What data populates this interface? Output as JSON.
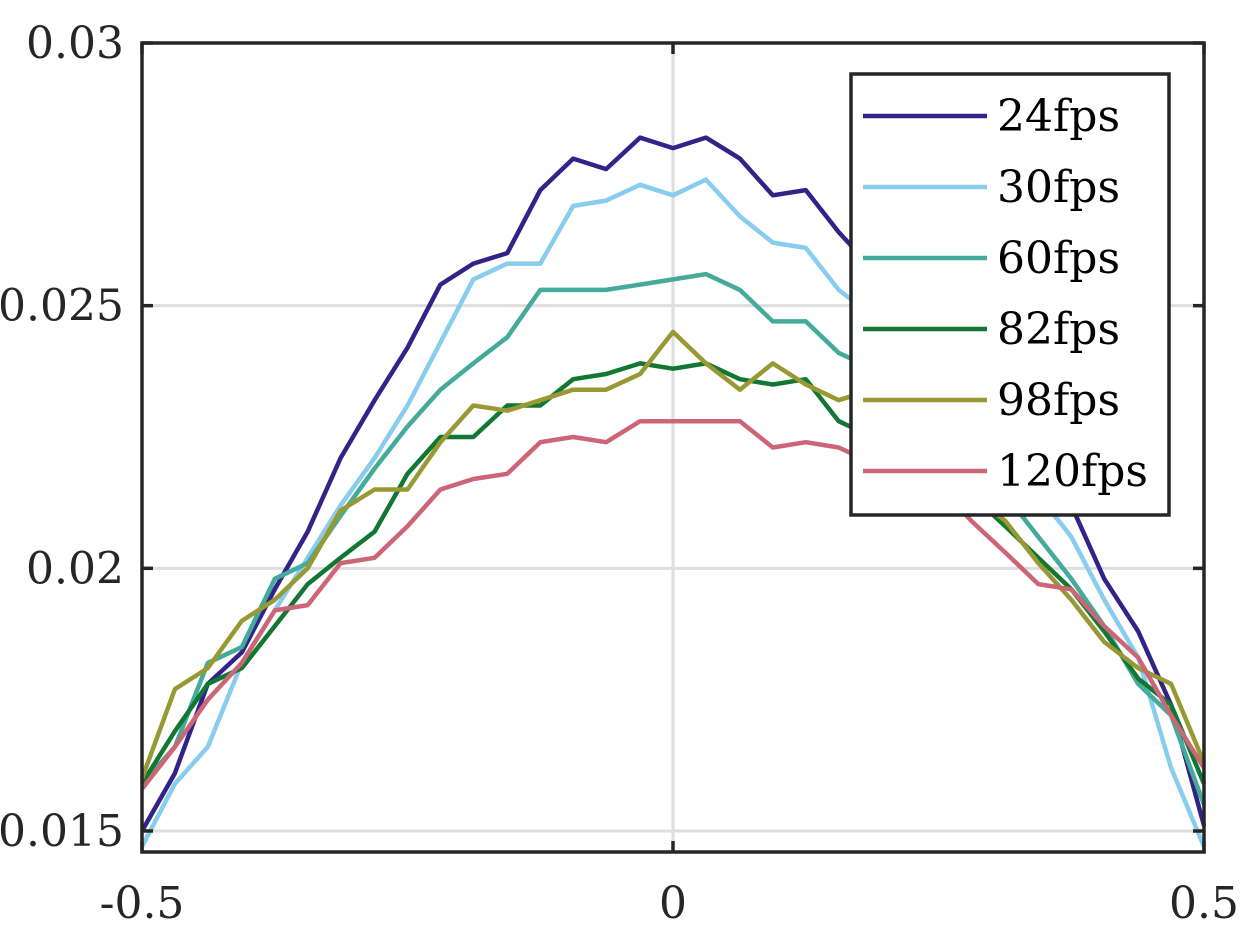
{
  "chart_data": {
    "type": "line",
    "title": "",
    "xlabel": "",
    "ylabel": "",
    "xlim": [
      -0.5,
      0.5
    ],
    "ylim": [
      0.0146,
      0.03
    ],
    "xticks": [
      -0.5,
      0,
      0.5
    ],
    "xtick_labels": [
      "-0.5",
      "0",
      "0.5"
    ],
    "yticks": [
      0.015,
      0.02,
      0.025,
      0.03
    ],
    "ytick_labels": [
      "0.015",
      "0.02",
      "0.025",
      "0.03"
    ],
    "grid": true,
    "legend_position": "top-right",
    "x": [
      -0.5,
      -0.469,
      -0.438,
      -0.406,
      -0.375,
      -0.344,
      -0.313,
      -0.281,
      -0.25,
      -0.219,
      -0.188,
      -0.156,
      -0.125,
      -0.094,
      -0.063,
      -0.031,
      0.0,
      0.031,
      0.063,
      0.094,
      0.125,
      0.156,
      0.188,
      0.219,
      0.25,
      0.281,
      0.313,
      0.344,
      0.375,
      0.406,
      0.438,
      0.469,
      0.5
    ],
    "series": [
      {
        "name": "24fps",
        "color": "#332288",
        "values": [
          0.015,
          0.0161,
          0.0178,
          0.0184,
          0.0196,
          0.0207,
          0.0221,
          0.0232,
          0.0242,
          0.0254,
          0.0258,
          0.026,
          0.0272,
          0.0278,
          0.0276,
          0.0282,
          0.028,
          0.0282,
          0.0278,
          0.0271,
          0.0272,
          0.0264,
          0.0257,
          0.0252,
          0.0246,
          0.0236,
          0.0228,
          0.0218,
          0.0212,
          0.0198,
          0.0188,
          0.0174,
          0.0151
        ]
      },
      {
        "name": "30fps",
        "color": "#88CCEE",
        "values": [
          0.0147,
          0.0159,
          0.0166,
          0.0182,
          0.0192,
          0.0202,
          0.0212,
          0.0221,
          0.0231,
          0.0243,
          0.0255,
          0.0258,
          0.0258,
          0.0269,
          0.027,
          0.0273,
          0.0271,
          0.0274,
          0.0267,
          0.0262,
          0.0261,
          0.0253,
          0.0248,
          0.0243,
          0.0237,
          0.0228,
          0.0221,
          0.0214,
          0.0206,
          0.0194,
          0.0183,
          0.0162,
          0.0147
        ]
      },
      {
        "name": "60fps",
        "color": "#44AA99",
        "values": [
          0.0159,
          0.0166,
          0.0182,
          0.0185,
          0.0198,
          0.0201,
          0.021,
          0.0219,
          0.0227,
          0.0234,
          0.0239,
          0.0244,
          0.0253,
          0.0253,
          0.0253,
          0.0254,
          0.0255,
          0.0256,
          0.0253,
          0.0247,
          0.0247,
          0.0241,
          0.0238,
          0.0232,
          0.0228,
          0.022,
          0.0214,
          0.0206,
          0.0198,
          0.0189,
          0.0178,
          0.0172,
          0.0155
        ]
      },
      {
        "name": "82fps",
        "color": "#117733",
        "values": [
          0.0159,
          0.0169,
          0.0178,
          0.0181,
          0.0189,
          0.0197,
          0.0202,
          0.0207,
          0.0218,
          0.0225,
          0.0225,
          0.0231,
          0.0231,
          0.0236,
          0.0237,
          0.0239,
          0.0238,
          0.0239,
          0.0236,
          0.0235,
          0.0236,
          0.0228,
          0.0225,
          0.022,
          0.0216,
          0.0214,
          0.0208,
          0.0202,
          0.0196,
          0.0188,
          0.0179,
          0.0174,
          0.0159
        ]
      },
      {
        "name": "98fps",
        "color": "#999933",
        "values": [
          0.016,
          0.0177,
          0.0181,
          0.019,
          0.0194,
          0.02,
          0.0211,
          0.0215,
          0.0215,
          0.0224,
          0.0231,
          0.023,
          0.0232,
          0.0234,
          0.0234,
          0.0237,
          0.0245,
          0.0239,
          0.0234,
          0.0239,
          0.0235,
          0.0232,
          0.0234,
          0.0228,
          0.0222,
          0.0214,
          0.0209,
          0.0201,
          0.0194,
          0.0186,
          0.0181,
          0.0178,
          0.0163
        ]
      },
      {
        "name": "120fps",
        "color": "#CC6677",
        "values": [
          0.0158,
          0.0166,
          0.0175,
          0.0182,
          0.0192,
          0.0193,
          0.0201,
          0.0202,
          0.0208,
          0.0215,
          0.0217,
          0.0218,
          0.0224,
          0.0225,
          0.0224,
          0.0228,
          0.0228,
          0.0228,
          0.0228,
          0.0223,
          0.0224,
          0.0223,
          0.022,
          0.0219,
          0.0216,
          0.0209,
          0.0203,
          0.0197,
          0.0196,
          0.0189,
          0.0183,
          0.0172,
          0.0162
        ]
      }
    ]
  }
}
